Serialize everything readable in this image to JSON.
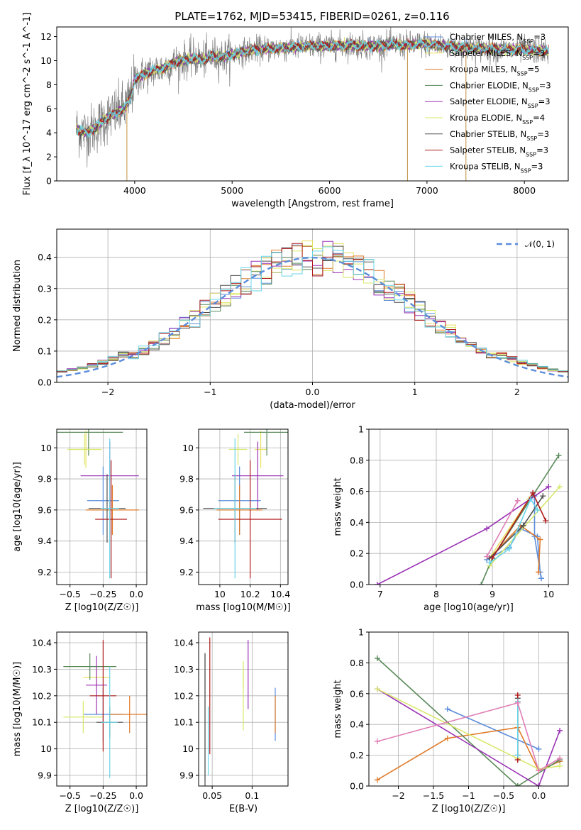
{
  "title": "PLATE=1762, MJD=53415, FIBERID=0261, z=0.116",
  "model_names": [
    "Chabrier MILES",
    "Salpeter MILES",
    "Kroupa MILES",
    "Chabrier ELODIE",
    "Salpeter ELODIE",
    "Kroupa ELODIE",
    "Chabrier STELIB",
    "Salpeter STELIB",
    "Kroupa STELIB"
  ],
  "colors": [
    "#5b8ddb",
    "#e8e05e",
    "#e07b2a",
    "#5a8a5a",
    "#9a32b5",
    "#d8e86a",
    "#505050",
    "#b01a1a",
    "#6ad5e8"
  ],
  "chart_data": [
    {
      "id": "spectrum",
      "type": "line",
      "xlabel": "wavelength [Angstrom, rest frame]",
      "ylabel": "Flux [f_λ 10^-17 erg cm^-2 s^-1 A^-1]",
      "xlim": [
        3200,
        8450
      ],
      "ylim": [
        0,
        12.8
      ],
      "xticks": [
        4000,
        5000,
        6000,
        7000,
        8000
      ],
      "yticks": [
        0,
        2,
        4,
        6,
        8,
        10,
        12
      ],
      "legend_loc": "upper right",
      "legend": [
        "Chabrier MILES, N_SSP=3",
        "Salpeter MILES, N_SSP=3",
        "Kroupa MILES, N_SSP=5",
        "Chabrier ELODIE, N_SSP=3",
        "Salpeter ELODIE, N_SSP=3",
        "Kroupa ELODIE, N_SSP=4",
        "Chabrier STELIB, N_SSP=3",
        "Salpeter STELIB, N_SSP=3",
        "Kroupa STELIB, N_SSP=3"
      ],
      "legend_colors": [
        "#5b8ddb",
        "#e8e05e",
        "#e07b2a",
        "#5a8a5a",
        "#9a32b5",
        "#d8e86a",
        "#505050",
        "#b01a1a",
        "#6ad5e8"
      ],
      "data_series": {
        "name": "data",
        "color": "#808080"
      },
      "continuum_points": [
        [
          3400,
          4.3
        ],
        [
          3500,
          4.0
        ],
        [
          3600,
          4.4
        ],
        [
          3700,
          5.2
        ],
        [
          3800,
          5.6
        ],
        [
          3900,
          6.1
        ],
        [
          3950,
          6.8
        ],
        [
          4000,
          8.4
        ],
        [
          4100,
          8.9
        ],
        [
          4200,
          9.2
        ],
        [
          4300,
          9.4
        ],
        [
          4400,
          9.8
        ],
        [
          4500,
          10.0
        ],
        [
          4600,
          10.2
        ],
        [
          4700,
          10.1
        ],
        [
          4800,
          10.4
        ],
        [
          4900,
          10.3
        ],
        [
          5000,
          10.5
        ],
        [
          5200,
          10.9
        ],
        [
          5400,
          11.0
        ],
        [
          5600,
          11.1
        ],
        [
          5800,
          11.2
        ],
        [
          6000,
          11.2
        ],
        [
          6200,
          11.3
        ],
        [
          6400,
          11.2
        ],
        [
          6600,
          11.3
        ],
        [
          6800,
          11.3
        ],
        [
          7000,
          11.4
        ],
        [
          7200,
          11.2
        ],
        [
          7400,
          11.1
        ],
        [
          7600,
          11.0
        ],
        [
          7800,
          10.9
        ],
        [
          8000,
          10.9
        ],
        [
          8200,
          10.8
        ]
      ]
    },
    {
      "id": "residuals",
      "type": "histogram",
      "xlabel": "(data-model)/error",
      "ylabel": "Normed distribution",
      "xlim": [
        -2.5,
        2.5
      ],
      "ylim": [
        0,
        0.49
      ],
      "xticks": [
        -2,
        -1,
        0,
        1,
        2
      ],
      "yticks": [
        0.0,
        0.1,
        0.2,
        0.3,
        0.4
      ],
      "grid": true,
      "legend_loc": "upper right",
      "legend": [
        "𝒩(0, 1)"
      ],
      "reference_curve": {
        "name": "𝒩(0, 1)",
        "color": "#5b8ddb",
        "style": "dashed"
      },
      "bin_width": 0.1
    },
    {
      "id": "age_vs_Z",
      "type": "errorbar",
      "xlabel": "Z [log10(Z/Z☉)]",
      "ylabel": "age  [log10(age/yr)]",
      "xlim": [
        -0.6,
        0.08
      ],
      "ylim": [
        9.12,
        10.12
      ],
      "xticks": [
        -0.5,
        -0.25,
        0.0
      ],
      "yticks": [
        9.2,
        9.4,
        9.6,
        9.8,
        10.0
      ],
      "grid": true,
      "points": [
        {
          "x": -0.25,
          "xerr": 0.12,
          "y": 9.66,
          "yerr": 0.22
        },
        {
          "x": -0.38,
          "xerr": 0.12,
          "y": 9.99,
          "yerr": 0.12
        },
        {
          "x": -0.18,
          "xerr": 0.2,
          "y": 9.6,
          "yerr": 0.16
        },
        {
          "x": -0.36,
          "xerr": 0.26,
          "y": 10.1,
          "yerr": 0.15
        },
        {
          "x": -0.2,
          "xerr": 0.22,
          "y": 9.82,
          "yerr": 0.22
        },
        {
          "x": -0.39,
          "xerr": 0.13,
          "y": 9.99,
          "yerr": 0.1
        },
        {
          "x": -0.22,
          "xerr": 0.14,
          "y": 9.61,
          "yerr": 0.22
        },
        {
          "x": -0.19,
          "xerr": 0.12,
          "y": 9.54,
          "yerr": 0.38
        },
        {
          "x": -0.2,
          "xerr": 0.07,
          "y": 9.61,
          "yerr": 0.45
        }
      ]
    },
    {
      "id": "age_vs_mass",
      "type": "errorbar",
      "xlabel": "mass [log10(M/M☉)]",
      "ylabel": "",
      "xlim": [
        9.86,
        10.45
      ],
      "ylim": [
        9.12,
        10.12
      ],
      "xticks": [
        10.0,
        10.2,
        10.4
      ],
      "yticks": [
        9.2,
        9.4,
        9.6,
        9.8,
        10.0
      ],
      "grid": true,
      "points": [
        {
          "x": 10.13,
          "xerr": 0.14,
          "y": 9.66,
          "yerr": 0.22
        },
        {
          "x": 10.27,
          "xerr": 0.04,
          "y": 9.99,
          "yerr": 0.12
        },
        {
          "x": 10.13,
          "xerr": 0.15,
          "y": 9.6,
          "yerr": 0.16
        },
        {
          "x": 10.31,
          "xerr": 0.15,
          "y": 10.1,
          "yerr": 0.15
        },
        {
          "x": 10.25,
          "xerr": 0.17,
          "y": 9.82,
          "yerr": 0.22
        },
        {
          "x": 10.12,
          "xerr": 0.06,
          "y": 9.99,
          "yerr": 0.1
        },
        {
          "x": 10.1,
          "xerr": 0.21,
          "y": 9.61,
          "yerr": 0.22
        },
        {
          "x": 10.2,
          "xerr": 0.21,
          "y": 9.54,
          "yerr": 0.38
        },
        {
          "x": 10.1,
          "xerr": 0.14,
          "y": 9.61,
          "yerr": 0.45
        }
      ]
    },
    {
      "id": "weight_vs_age",
      "type": "line",
      "xlabel": "age  [log10(age/yr)]",
      "ylabel": "mass weight",
      "xlim": [
        6.8,
        10.35
      ],
      "ylim": [
        0,
        1.0
      ],
      "xticks": [
        7,
        8,
        9,
        10
      ],
      "yticks": [
        0.0,
        0.2,
        0.4,
        0.6,
        0.8,
        1.0
      ],
      "grid": true,
      "series": [
        {
          "values": [
            [
              8.9,
              0.16
            ],
            [
              9.3,
              0.24
            ],
            [
              9.5,
              0.36
            ],
            [
              9.8,
              0.31
            ],
            [
              9.85,
              0.08
            ],
            [
              9.87,
              0.04
            ],
            [
              9.75,
              0.31
            ],
            [
              9.75,
              0.57
            ]
          ]
        },
        {
          "values": [
            [
              8.95,
              0.17
            ],
            [
              9.65,
              0.55
            ]
          ]
        },
        {
          "values": [
            [
              8.95,
              0.17
            ],
            [
              9.5,
              0.38
            ],
            [
              9.85,
              0.29
            ],
            [
              9.82,
              0.08
            ]
          ]
        },
        {
          "values": [
            [
              8.8,
              0.0
            ],
            [
              9.0,
              0.17
            ],
            [
              10.18,
              0.83
            ]
          ]
        },
        {
          "values": [
            [
              6.95,
              0.0
            ],
            [
              8.9,
              0.36
            ],
            [
              10.0,
              0.63
            ]
          ]
        },
        {
          "values": [
            [
              8.95,
              0.12
            ],
            [
              10.2,
              0.63
            ]
          ]
        },
        {
          "values": [
            [
              8.95,
              0.17
            ],
            [
              9.55,
              0.38
            ],
            [
              9.9,
              0.57
            ]
          ]
        },
        {
          "values": [
            [
              9.0,
              0.17
            ],
            [
              9.72,
              0.59
            ],
            [
              9.95,
              0.41
            ]
          ]
        },
        {
          "values": [
            [
              8.95,
              0.14
            ],
            [
              9.3,
              0.23
            ],
            [
              9.68,
              0.55
            ],
            [
              9.8,
              0.48
            ]
          ]
        }
      ],
      "extra_series": [
        {
          "color": "#e07fb5",
          "values": [
            [
              8.9,
              0.18
            ],
            [
              9.45,
              0.54
            ]
          ]
        }
      ]
    },
    {
      "id": "mass_vs_Z",
      "type": "errorbar",
      "xlabel": "Z [log10(Z/Z☉)]",
      "ylabel": "mass [log10(M/M☉)]",
      "xlim": [
        -0.6,
        0.08
      ],
      "ylim": [
        9.86,
        10.44
      ],
      "xticks": [
        -0.5,
        -0.25,
        0.0
      ],
      "yticks": [
        9.9,
        10.0,
        10.1,
        10.2,
        10.3,
        10.4
      ],
      "grid": true,
      "points": [
        {
          "x": -0.25,
          "xerr": 0.15,
          "y": 10.13,
          "yerr": 0.1
        },
        {
          "x": -0.3,
          "xerr": 0.1,
          "y": 10.27,
          "yerr": 0.04
        },
        {
          "x": -0.05,
          "xerr": 0.15,
          "y": 10.13,
          "yerr": 0.07
        },
        {
          "x": -0.35,
          "xerr": 0.2,
          "y": 10.31,
          "yerr": 0.05
        },
        {
          "x": -0.3,
          "xerr": 0.08,
          "y": 10.24,
          "yerr": 0.11
        },
        {
          "x": -0.4,
          "xerr": 0.15,
          "y": 10.12,
          "yerr": 0.06
        },
        {
          "x": -0.2,
          "xerr": 0.1,
          "y": 10.1,
          "yerr": 0.06
        },
        {
          "x": -0.25,
          "xerr": 0.1,
          "y": 10.2,
          "yerr": 0.21
        },
        {
          "x": -0.2,
          "xerr": 0.06,
          "y": 10.1,
          "yerr": 0.21
        }
      ]
    },
    {
      "id": "mass_vs_EBV",
      "type": "errorbar",
      "xlabel": "E(B-V)",
      "ylabel": "",
      "xlim": [
        0.033,
        0.145
      ],
      "ylim": [
        9.86,
        10.44
      ],
      "xticks": [
        0.05,
        0.1
      ],
      "yticks": [
        9.9,
        10.0,
        10.1,
        10.2,
        10.3,
        10.4
      ],
      "grid": true,
      "points": [
        {
          "x": 0.129,
          "y": 10.13,
          "yerr": 0.1
        },
        {
          "x": 0.089,
          "y": 10.27,
          "yerr": 0.04
        },
        {
          "x": 0.129,
          "y": 10.13,
          "yerr": 0.07
        },
        {
          "x": 0.041,
          "y": 10.12,
          "yerr": 0.24
        },
        {
          "x": 0.095,
          "y": 10.28,
          "yerr": 0.13
        },
        {
          "x": 0.089,
          "y": 10.2,
          "yerr": 0.13
        },
        {
          "x": 0.041,
          "y": 10.1,
          "yerr": 0.26
        },
        {
          "x": 0.047,
          "y": 10.2,
          "yerr": 0.22
        },
        {
          "x": 0.045,
          "y": 10.03,
          "yerr": 0.13
        }
      ]
    },
    {
      "id": "weight_vs_Z",
      "type": "line",
      "xlabel": "Z [log10(Z/Z☉)]",
      "ylabel": "mass weight",
      "xlim": [
        -2.42,
        0.42
      ],
      "ylim": [
        0,
        1.0
      ],
      "xticks": [
        -2.0,
        -1.5,
        -1.0,
        -0.5,
        0.0
      ],
      "yticks": [
        0.0,
        0.2,
        0.4,
        0.6,
        0.8,
        1.0
      ],
      "grid": true,
      "series": [
        {
          "values": [
            [
              -1.3,
              0.5
            ],
            [
              0.0,
              0.24
            ]
          ]
        },
        {
          "values": [
            [
              -0.3,
              0.55
            ],
            [
              -0.3,
              0.18
            ]
          ]
        },
        {
          "values": [
            [
              -2.3,
              0.04
            ],
            [
              -1.3,
              0.31
            ],
            [
              -0.3,
              0.38
            ],
            [
              0.0,
              0.1
            ],
            [
              0.3,
              0.16
            ]
          ]
        },
        {
          "values": [
            [
              -2.3,
              0.83
            ],
            [
              -0.3,
              0.0
            ],
            [
              0.3,
              0.17
            ]
          ]
        },
        {
          "values": [
            [
              -2.3,
              0.63
            ],
            [
              0.0,
              0.0
            ],
            [
              0.3,
              0.36
            ]
          ]
        },
        {
          "values": [
            [
              -2.3,
              0.63
            ],
            [
              0.0,
              0.11
            ],
            [
              0.3,
              0.13
            ]
          ]
        },
        {
          "values": [
            [
              -0.3,
              0.57
            ],
            [
              -0.3,
              0.2
            ]
          ]
        },
        {
          "values": [
            [
              -0.3,
              0.59
            ],
            [
              -0.3,
              0.17
            ]
          ]
        },
        {
          "values": [
            [
              -0.3,
              0.55
            ],
            [
              -0.3,
              0.2
            ]
          ]
        }
      ],
      "extra_series": [
        {
          "color": "#e07fb5",
          "values": [
            [
              -2.3,
              0.29
            ],
            [
              -0.3,
              0.54
            ],
            [
              0.0,
              0.1
            ],
            [
              0.3,
              0.18
            ]
          ]
        }
      ]
    }
  ]
}
